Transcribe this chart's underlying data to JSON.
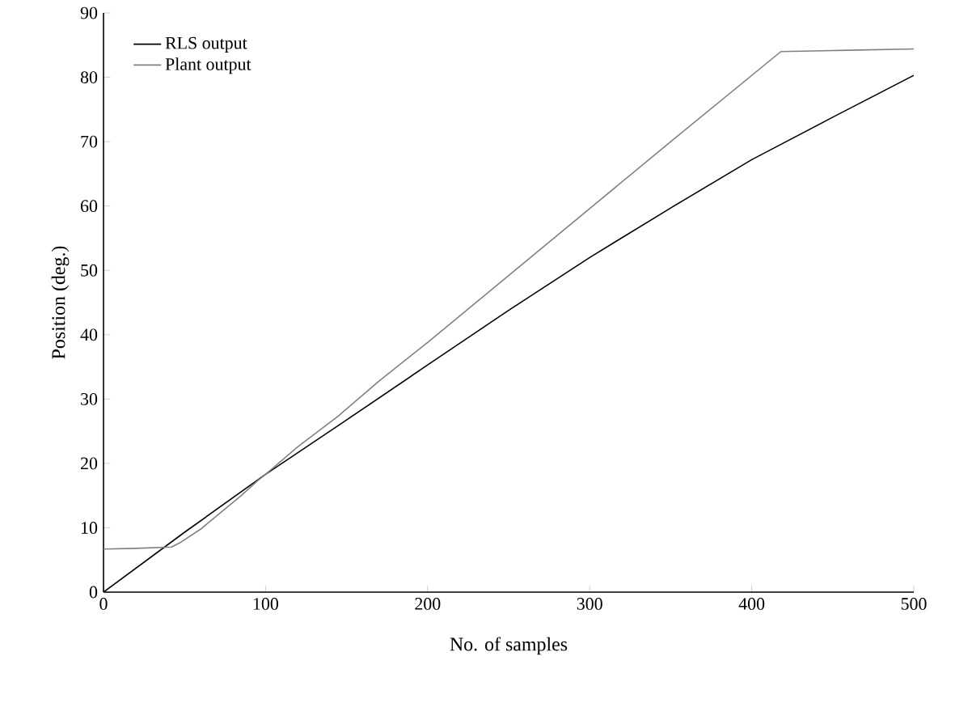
{
  "chart_data": {
    "type": "line",
    "xlabel": "No. of samples",
    "ylabel": "Position (deg.)",
    "xlim": [
      0,
      500
    ],
    "ylim": [
      0,
      90
    ],
    "xticks": [
      0,
      100,
      200,
      300,
      400,
      500
    ],
    "yticks": [
      0,
      10,
      20,
      30,
      40,
      50,
      60,
      70,
      80,
      90
    ],
    "legend": "top left",
    "grid": false,
    "marker": "none",
    "line_style": "solid",
    "series": [
      {
        "name": "RLS output",
        "color": "#000000",
        "x": [
          0,
          50,
          100,
          145,
          200,
          250,
          300,
          350,
          400,
          450,
          500
        ],
        "values": [
          0,
          9.3,
          18.3,
          25.9,
          35.3,
          43.8,
          52,
          59.7,
          67.2,
          73.8,
          80.3
        ]
      },
      {
        "name": "Plant output",
        "color": "#808080",
        "x": [
          0,
          20,
          42,
          48,
          60,
          72,
          85,
          95,
          100,
          120,
          145,
          170,
          200,
          250,
          300,
          350,
          418,
          460,
          500
        ],
        "values": [
          6.7,
          6.8,
          7.0,
          7.8,
          9.8,
          12.3,
          15.0,
          17.3,
          18.3,
          22.6,
          27.4,
          32.8,
          38.8,
          49.2,
          59.6,
          70.0,
          84.0,
          84.2,
          84.4
        ]
      }
    ]
  }
}
